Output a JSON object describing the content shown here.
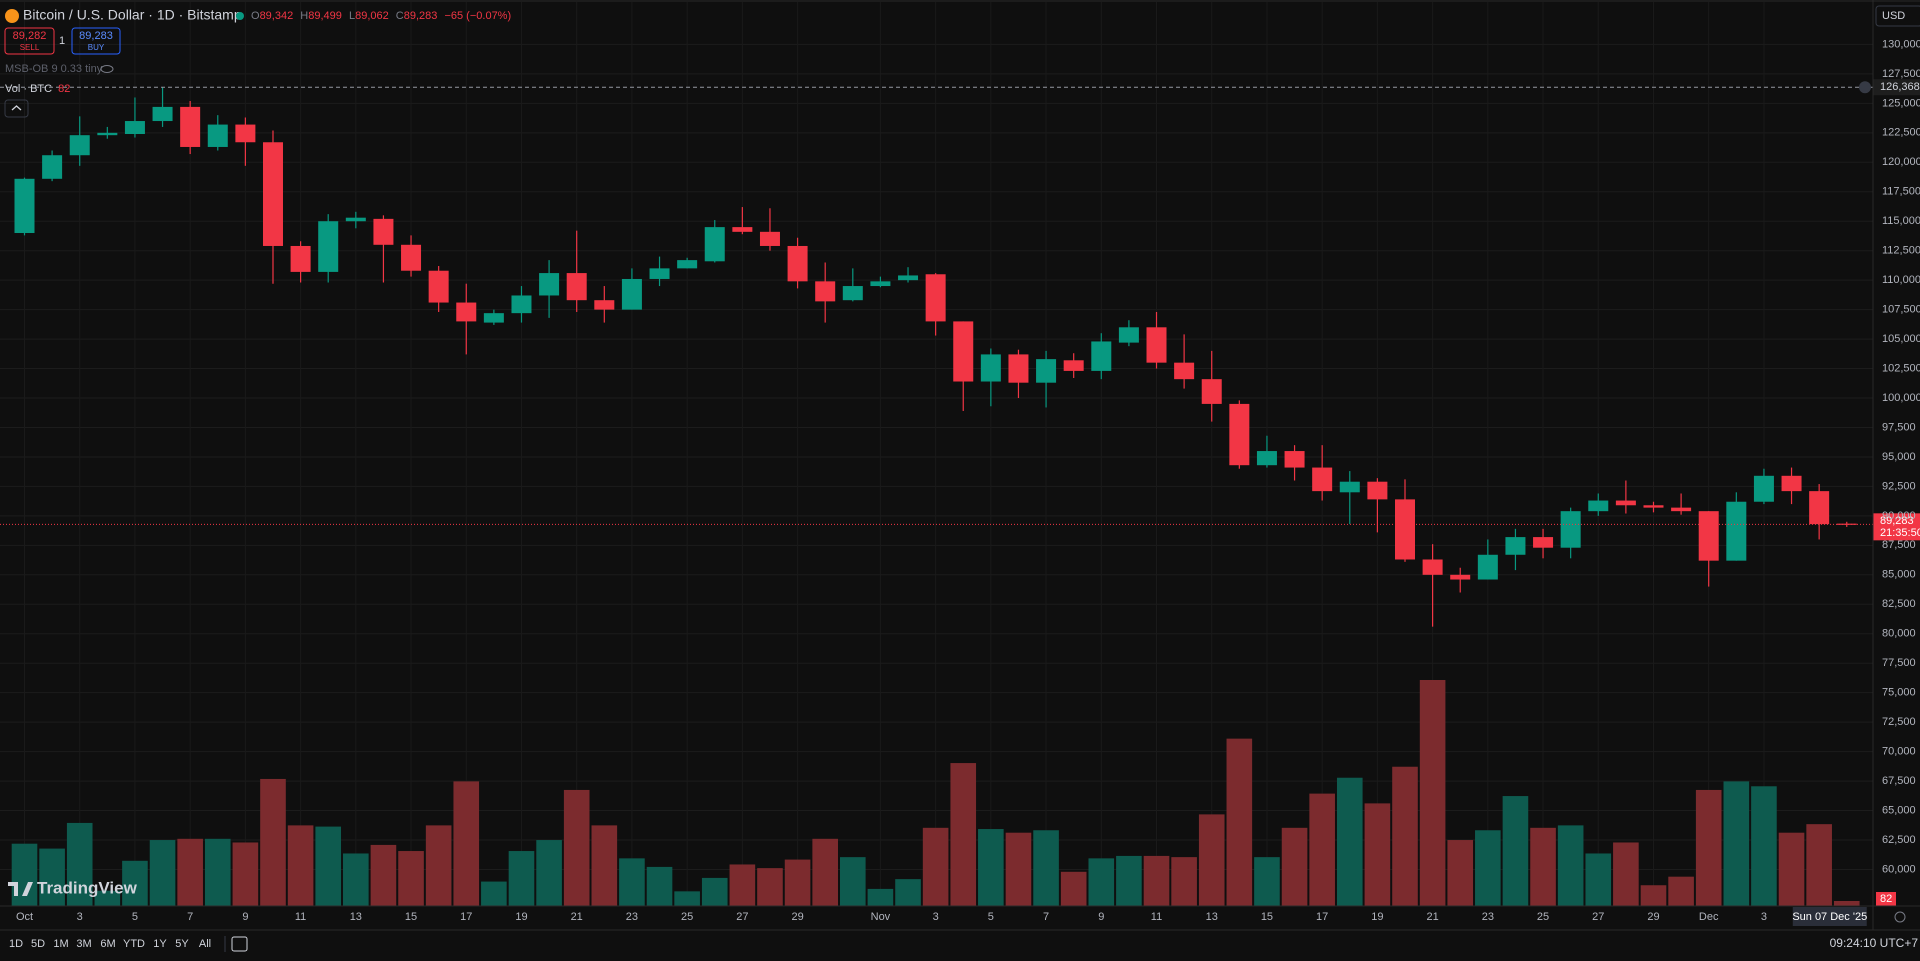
{
  "header": {
    "symbol": "Bitcoin / U.S. Dollar · 1D · Bitstamp",
    "ohlc": [
      {
        "label": "O",
        "value": "89,342"
      },
      {
        "label": "H",
        "value": "89,499"
      },
      {
        "label": "L",
        "value": "89,062"
      },
      {
        "label": "C",
        "value": "89,283"
      }
    ],
    "change": "−65 (−0.07%)"
  },
  "trade": {
    "sell_price": "89,282",
    "sell": "SELL",
    "quantity": "1",
    "buy_price": "89,283",
    "buy": "BUY"
  },
  "indicators": {
    "msb": "MSB-OB 9 0.33 tiny",
    "volume": "Vol · BTC",
    "volume_value": "82"
  },
  "currency": "USD",
  "brand": "TradingView",
  "toolbar": {
    "ranges": [
      "1D",
      "5D",
      "1M",
      "3M",
      "6M",
      "YTD",
      "1Y",
      "5Y",
      "All"
    ],
    "time": "09:24:10 UTC+7"
  },
  "chart_data": {
    "type": "candlestick",
    "categories": [
      "Oct",
      null,
      "3",
      null,
      "5",
      null,
      "7",
      null,
      "9",
      null,
      "11",
      null,
      "13",
      null,
      "15",
      null,
      "17",
      null,
      "19",
      null,
      "21",
      null,
      "23",
      null,
      "25",
      null,
      "27",
      null,
      "29",
      null,
      null,
      "Nov",
      null,
      "3",
      null,
      "5",
      null,
      "7",
      null,
      "9",
      null,
      "11",
      null,
      "13",
      null,
      "15",
      null,
      "17",
      null,
      "19",
      null,
      "21",
      null,
      "23",
      null,
      "25",
      null,
      "27",
      null,
      "29",
      null,
      "Dec",
      null,
      "3",
      null,
      null,
      null
    ],
    "open": [
      114000,
      118600,
      120600,
      122300,
      122400,
      123500,
      124700,
      121300,
      123200,
      121700,
      112900,
      110700,
      115000,
      115200,
      113000,
      110800,
      108100,
      106400,
      107200,
      108700,
      110600,
      108300,
      107500,
      110100,
      111000,
      111600,
      114500,
      114100,
      112900,
      109900,
      108300,
      109500,
      110000,
      110500,
      106500,
      101400,
      103700,
      101300,
      103200,
      102300,
      104700,
      106000,
      103000,
      101600,
      99500,
      94300,
      95500,
      94100,
      92000,
      92900,
      91400,
      86300,
      85000,
      84600,
      86700,
      88200,
      87300,
      90400,
      91300,
      90900,
      90700,
      90400,
      86200,
      91200,
      93400,
      92100,
      89342
    ],
    "high": [
      118700,
      121000,
      123900,
      123000,
      125500,
      126368,
      125200,
      124000,
      123800,
      122700,
      113300,
      115600,
      115800,
      115500,
      113800,
      111200,
      109700,
      107500,
      109500,
      111700,
      114200,
      109500,
      111000,
      112000,
      111900,
      115100,
      116200,
      116100,
      113600,
      111500,
      111000,
      110300,
      111100,
      110600,
      106500,
      104200,
      104100,
      104000,
      103800,
      105500,
      106600,
      107300,
      105400,
      104000,
      99800,
      96800,
      96000,
      96000,
      93800,
      93200,
      93100,
      87600,
      85600,
      88000,
      88900,
      88900,
      90700,
      91900,
      93000,
      91200,
      91900,
      90400,
      92000,
      94000,
      94100,
      92700,
      89499
    ],
    "low": [
      113800,
      118400,
      119700,
      122000,
      122100,
      123000,
      120700,
      121000,
      119700,
      109700,
      109800,
      109800,
      114400,
      109800,
      110300,
      107300,
      103700,
      106200,
      106400,
      106800,
      107300,
      106400,
      107500,
      109500,
      111000,
      111500,
      113900,
      112500,
      109300,
      106400,
      108200,
      109400,
      109800,
      105300,
      98900,
      99300,
      100000,
      99200,
      101700,
      101600,
      104400,
      102500,
      100800,
      98000,
      94000,
      94100,
      93000,
      91300,
      89300,
      88600,
      86100,
      80600,
      83500,
      84600,
      85400,
      86400,
      86400,
      90000,
      90200,
      90300,
      90100,
      84000,
      86200,
      91000,
      91000,
      88000,
      89062
    ],
    "close": [
      118600,
      120600,
      122300,
      122500,
      123500,
      124700,
      121300,
      123200,
      121700,
      112900,
      110700,
      115000,
      115300,
      113000,
      110800,
      108100,
      106500,
      107200,
      108700,
      110600,
      108300,
      107500,
      110100,
      111000,
      111700,
      114500,
      114100,
      112900,
      109900,
      108200,
      109500,
      109900,
      110400,
      106500,
      101400,
      103700,
      101300,
      103300,
      102300,
      104800,
      106000,
      103000,
      101600,
      99500,
      94300,
      95500,
      94100,
      92100,
      92900,
      91400,
      86300,
      85000,
      84600,
      86700,
      88200,
      87300,
      90400,
      91300,
      90900,
      90700,
      90400,
      86200,
      91200,
      93400,
      92100,
      89300,
      89283
    ],
    "volume": [
      1020,
      940,
      1360,
      250,
      740,
      1080,
      1100,
      1100,
      1040,
      2080,
      1320,
      1300,
      860,
      1000,
      900,
      1320,
      2040,
      400,
      900,
      1080,
      1900,
      1320,
      780,
      640,
      240,
      460,
      680,
      620,
      760,
      1100,
      800,
      280,
      440,
      1280,
      2340,
      1260,
      1200,
      1240,
      560,
      780,
      820,
      820,
      800,
      1500,
      2740,
      800,
      1280,
      1840,
      2100,
      1680,
      2280,
      3700,
      1080,
      1240,
      1800,
      1280,
      1320,
      860,
      1040,
      340,
      480,
      1900,
      2040,
      1960,
      1200,
      1340,
      82
    ],
    "up_color": "#089981",
    "down_color": "#f23645",
    "volume_up_color": "#0e5b4f",
    "volume_down_color": "#7c2b2e",
    "ylim": [
      56900,
      133600
    ],
    "volume_ylim": [
      0,
      14800
    ],
    "grid": true,
    "yticks": [
      {
        "value": 60000,
        "label": "60,000"
      },
      {
        "value": 62500,
        "label": "62,500"
      },
      {
        "value": 65000,
        "label": "65,000"
      },
      {
        "value": 67500,
        "label": "67,500"
      },
      {
        "value": 70000,
        "label": "70,000"
      },
      {
        "value": 72500,
        "label": "72,500"
      },
      {
        "value": 75000,
        "label": "75,000"
      },
      {
        "value": 77500,
        "label": "77,500"
      },
      {
        "value": 80000,
        "label": "80,000"
      },
      {
        "value": 82500,
        "label": "82,500"
      },
      {
        "value": 85000,
        "label": "85,000"
      },
      {
        "value": 87500,
        "label": "87,500"
      },
      {
        "value": 90000,
        "label": "90,000"
      },
      {
        "value": 92500,
        "label": "92,500"
      },
      {
        "value": 95000,
        "label": "95,000"
      },
      {
        "value": 97500,
        "label": "97,500"
      },
      {
        "value": 100000,
        "label": "100,000"
      },
      {
        "value": 102500,
        "label": "102,500"
      },
      {
        "value": 105000,
        "label": "105,000"
      },
      {
        "value": 107500,
        "label": "107,500"
      },
      {
        "value": 110000,
        "label": "110,000"
      },
      {
        "value": 112500,
        "label": "112,500"
      },
      {
        "value": 115000,
        "label": "115,000"
      },
      {
        "value": 117500,
        "label": "117,500"
      },
      {
        "value": 120000,
        "label": "120,000"
      },
      {
        "value": 122500,
        "label": "122,500"
      },
      {
        "value": 125000,
        "label": "125,000"
      },
      {
        "value": 127500,
        "label": "127,500"
      },
      {
        "value": 130000,
        "label": "130,000"
      }
    ],
    "high_line": {
      "value": 126368,
      "label": "126,368"
    },
    "last_price": {
      "value": 89283,
      "label": "89,283"
    },
    "countdown": "21:35:50",
    "crosshair_date": "Sun 07 Dec '25"
  }
}
